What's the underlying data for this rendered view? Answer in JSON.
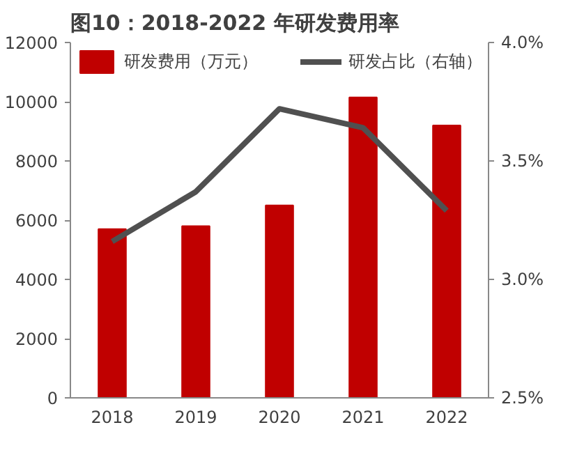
{
  "chart_data": {
    "type": "bar",
    "title": "图10：2018-2022 年研发费用率",
    "categories": [
      "2018",
      "2019",
      "2020",
      "2021",
      "2022"
    ],
    "series": [
      {
        "name": "研发费用（万元）",
        "color": "#c00000",
        "values": [
          5700,
          5800,
          6500,
          10150,
          9200
        ]
      },
      {
        "name": "研发占比（右轴）",
        "type": "line",
        "axis": "y2",
        "color": "#505050",
        "values": [
          3.16,
          3.37,
          3.72,
          3.64,
          3.29
        ]
      }
    ],
    "ylim": [
      0,
      12000
    ],
    "yticks": [
      0,
      2000,
      4000,
      6000,
      8000,
      10000,
      12000
    ],
    "y2lim": [
      2.5,
      4.0
    ],
    "y2ticks": [
      {
        "value": 2.5,
        "label": "2.5%"
      },
      {
        "value": 3.0,
        "label": "3.0%"
      },
      {
        "value": 3.5,
        "label": "3.5%"
      },
      {
        "value": 4.0,
        "label": "4.0%"
      }
    ],
    "grid": false,
    "legend": "top",
    "marker": "none",
    "line_style": "solid"
  }
}
